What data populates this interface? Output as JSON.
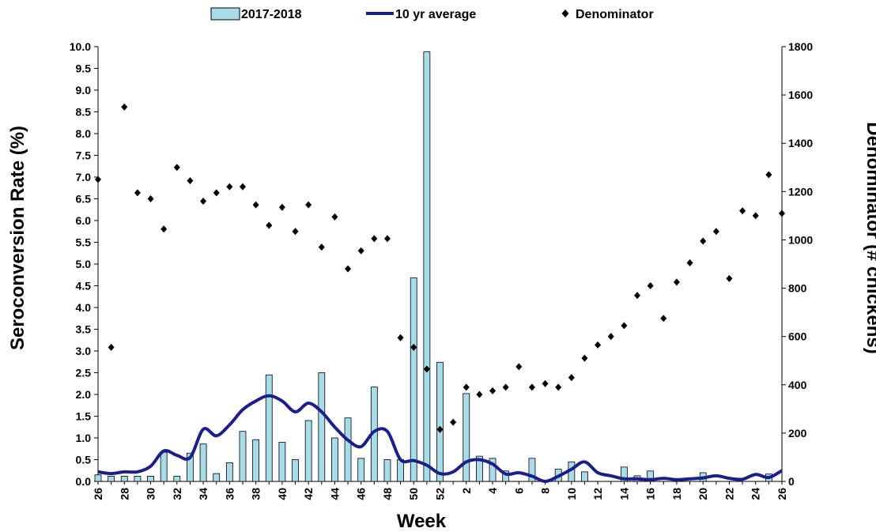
{
  "chart_data": {
    "type": "bar",
    "legend": {
      "placement": "top",
      "entries": [
        "2017-2018",
        "10 yr average",
        "Denominator"
      ]
    },
    "xlabel": "Week",
    "ylabel": "Seroconversion Rate (%)",
    "y2label": "Denominator (# chickens)",
    "ylim": [
      0,
      10
    ],
    "y2lim": [
      0,
      1800
    ],
    "ytick_labels": [
      "0.0",
      "0.5",
      "1.0",
      "1.5",
      "2.0",
      "2.5",
      "3.0",
      "3.5",
      "4.0",
      "4.5",
      "5.0",
      "5.5",
      "6.0",
      "6.5",
      "7.0",
      "7.5",
      "8.0",
      "8.5",
      "9.0",
      "9.5",
      "10.0"
    ],
    "y2tick_labels": [
      "0",
      "200",
      "400",
      "600",
      "800",
      "1000",
      "1200",
      "1400",
      "1600",
      "1800"
    ],
    "xtick_labels": [
      "26",
      "28",
      "30",
      "32",
      "34",
      "36",
      "38",
      "40",
      "42",
      "44",
      "46",
      "48",
      "50",
      "52",
      "2",
      "4",
      "6",
      "8",
      "10",
      "12",
      "14",
      "16",
      "18",
      "20",
      "22",
      "24",
      "26"
    ],
    "categories": [
      "26",
      "27",
      "28",
      "29",
      "30",
      "31",
      "32",
      "33",
      "34",
      "35",
      "36",
      "37",
      "38",
      "39",
      "40",
      "41",
      "42",
      "43",
      "44",
      "45",
      "46",
      "47",
      "48",
      "49",
      "50",
      "51",
      "52",
      "1",
      "2",
      "3",
      "4",
      "5",
      "6",
      "7",
      "8",
      "9",
      "10",
      "11",
      "12",
      "13",
      "14",
      "15",
      "16",
      "17",
      "18",
      "19",
      "20",
      "21",
      "22",
      "23",
      "24",
      "25",
      "26"
    ],
    "series": [
      {
        "name": "2017-2018",
        "kind": "bar",
        "color": "#a8dce8",
        "values": [
          0.15,
          0.12,
          0.12,
          0.12,
          0.12,
          0.67,
          0.12,
          0.65,
          0.86,
          0.18,
          0.43,
          1.15,
          0.96,
          2.45,
          0.9,
          0.5,
          1.4,
          2.5,
          1.0,
          1.46,
          0.53,
          2.17,
          0.5,
          0.5,
          4.68,
          9.88,
          2.74,
          0.0,
          2.02,
          0.58,
          0.53,
          0.24,
          0.0,
          0.53,
          0.0,
          0.28,
          0.45,
          0.22,
          0.0,
          0.0,
          0.33,
          0.13,
          0.24,
          0.0,
          0.0,
          0.0,
          0.2,
          0.0,
          0.0,
          0.0,
          0.0,
          0.17,
          0.0
        ]
      },
      {
        "name": "10 yr average",
        "kind": "line",
        "color": "#1b1f8a",
        "values": [
          0.22,
          0.18,
          0.22,
          0.22,
          0.35,
          0.7,
          0.6,
          0.55,
          1.2,
          1.05,
          1.3,
          1.65,
          1.85,
          1.97,
          1.85,
          1.6,
          1.8,
          1.6,
          1.25,
          0.95,
          0.8,
          1.15,
          1.15,
          0.5,
          0.48,
          0.37,
          0.18,
          0.22,
          0.45,
          0.5,
          0.4,
          0.17,
          0.2,
          0.12,
          0.0,
          0.12,
          0.28,
          0.45,
          0.2,
          0.13,
          0.06,
          0.06,
          0.04,
          0.07,
          0.04,
          0.06,
          0.08,
          0.13,
          0.07,
          0.05,
          0.16,
          0.09,
          0.25
        ]
      },
      {
        "name": "Denominator",
        "kind": "scatter",
        "axis": "right",
        "color": "#000000",
        "values": [
          1250,
          555,
          1550,
          1195,
          1170,
          1045,
          1300,
          1245,
          1160,
          1195,
          1220,
          1220,
          1145,
          1060,
          1135,
          1035,
          1145,
          970,
          1095,
          880,
          955,
          1005,
          1005,
          595,
          555,
          465,
          215,
          245,
          390,
          360,
          375,
          390,
          475,
          390,
          405,
          390,
          430,
          510,
          565,
          600,
          645,
          770,
          810,
          675,
          825,
          905,
          995,
          1035,
          840,
          1120,
          1100,
          1270,
          1110
        ]
      }
    ]
  }
}
